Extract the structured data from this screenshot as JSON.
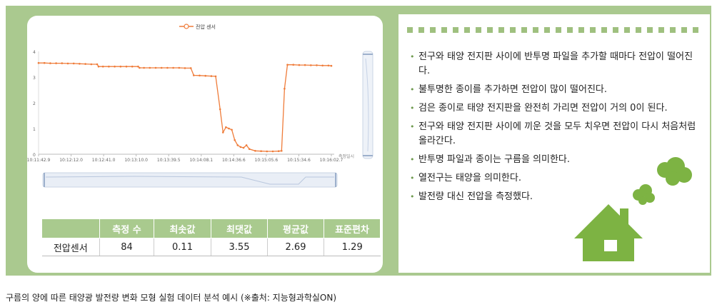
{
  "chart_data": [
    {
      "type": "line",
      "series": [
        {
          "name": "전압 센서",
          "color": "#ef7c3a",
          "points": [
            [
              0.0,
              3.55
            ],
            [
              0.02,
              3.55
            ],
            [
              0.04,
              3.54
            ],
            [
              0.06,
              3.54
            ],
            [
              0.08,
              3.54
            ],
            [
              0.1,
              3.53
            ],
            [
              0.12,
              3.53
            ],
            [
              0.14,
              3.52
            ],
            [
              0.16,
              3.51
            ],
            [
              0.18,
              3.5
            ],
            [
              0.2,
              3.5
            ],
            [
              0.205,
              3.41
            ],
            [
              0.22,
              3.41
            ],
            [
              0.24,
              3.41
            ],
            [
              0.26,
              3.41
            ],
            [
              0.28,
              3.41
            ],
            [
              0.3,
              3.41
            ],
            [
              0.32,
              3.41
            ],
            [
              0.34,
              3.41
            ],
            [
              0.345,
              3.36
            ],
            [
              0.36,
              3.36
            ],
            [
              0.38,
              3.36
            ],
            [
              0.4,
              3.36
            ],
            [
              0.42,
              3.36
            ],
            [
              0.44,
              3.36
            ],
            [
              0.46,
              3.36
            ],
            [
              0.48,
              3.36
            ],
            [
              0.5,
              3.35
            ],
            [
              0.52,
              3.35
            ],
            [
              0.53,
              3.07
            ],
            [
              0.55,
              3.06
            ],
            [
              0.57,
              3.05
            ],
            [
              0.59,
              3.04
            ],
            [
              0.605,
              3.03
            ],
            [
              0.62,
              1.75
            ],
            [
              0.63,
              0.85
            ],
            [
              0.64,
              1.05
            ],
            [
              0.65,
              1.0
            ],
            [
              0.66,
              0.95
            ],
            [
              0.67,
              0.55
            ],
            [
              0.68,
              0.35
            ],
            [
              0.69,
              0.28
            ],
            [
              0.7,
              0.25
            ],
            [
              0.71,
              0.35
            ],
            [
              0.72,
              0.2
            ],
            [
              0.74,
              0.13
            ],
            [
              0.76,
              0.12
            ],
            [
              0.78,
              0.11
            ],
            [
              0.8,
              0.11
            ],
            [
              0.82,
              0.12
            ],
            [
              0.83,
              0.13
            ],
            [
              0.84,
              2.55
            ],
            [
              0.85,
              3.48
            ],
            [
              0.87,
              3.48
            ],
            [
              0.89,
              3.47
            ],
            [
              0.91,
              3.47
            ],
            [
              0.93,
              3.46
            ],
            [
              0.95,
              3.46
            ],
            [
              0.97,
              3.45
            ],
            [
              0.99,
              3.45
            ],
            [
              1.0,
              3.44
            ]
          ]
        }
      ],
      "x_tick_labels": [
        "10:11:42.9",
        "10:12:12.0",
        "10:12:41.0",
        "10:13:10.0",
        "10:13:39.5",
        "10:14:08.1",
        "10:14:36.6",
        "10:15:05.6",
        "10:15:34.6",
        "10:16:02.7"
      ],
      "xlabel": "측정일시",
      "ylabel": "",
      "y_ticks": [
        "0",
        "1",
        "2",
        "3",
        "4"
      ],
      "ylim": [
        0,
        4
      ],
      "grid": false,
      "legend_position": "top-center"
    },
    {
      "type": "table",
      "columns": [
        "",
        "측정 수",
        "최솟값",
        "최댓값",
        "평균값",
        "표준편차"
      ],
      "rows": [
        [
          "전압센서",
          "84",
          "0.11",
          "3.55",
          "2.69",
          "1.29"
        ]
      ]
    }
  ],
  "bullets": [
    "전구와 태양 전지판 사이에 반투명 파일을 추가할 때마다 전압이 떨어진다.",
    "불투명한 종이를 추가하면 전압이 많이 떨어진다.",
    "검은 종이로 태양 전지판을 완전히 가리면 전압이 거의 0이 된다.",
    "전구와 태양 전지판 사이에 끼운 것을 모두 치우면 전압이 다시 처음처럼 올라간다.",
    "반투명 파일과 종이는 구름을 의미한다.",
    "열전구는 태양을 의미한다.",
    "발전량 대신 전압을 측정했다."
  ],
  "caption": "구름의 양에 따른 태양광 발전량 변화 모형 실험 데이터 분석 예시 (※출처: 지능형과학실ON)",
  "colors": {
    "frame": "#aac98f",
    "accent": "#a9ca8e",
    "line": "#ef7c3a",
    "house": "#7db343"
  }
}
